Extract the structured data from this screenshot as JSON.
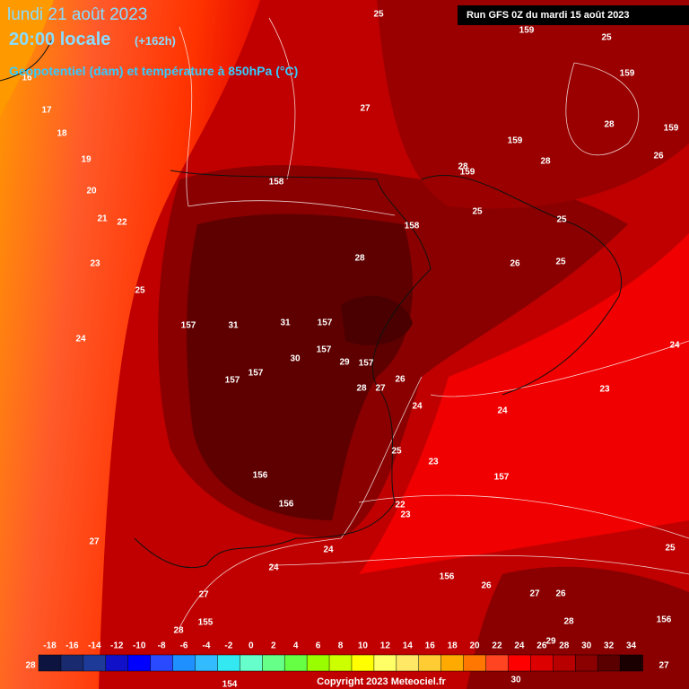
{
  "header": {
    "date": "lundi 21 août 2023",
    "time": "20:00 locale",
    "lead": "(+162h)",
    "field": "Geopotentiel (dam) et température à 850hPa (°C)",
    "run": "Run GFS 0Z du mardi 15 août 2023"
  },
  "footer": {
    "copyright": "Copyright 2023 Meteociel.fr"
  },
  "legend": {
    "ticks": [
      -18,
      -16,
      -14,
      -12,
      -10,
      -8,
      -6,
      -4,
      -2,
      0,
      2,
      4,
      6,
      8,
      10,
      12,
      14,
      16,
      18,
      20,
      22,
      24,
      26,
      28,
      30,
      32,
      34
    ],
    "colors": [
      "#0d1440",
      "#1a2a6e",
      "#1e3a99",
      "#1010c8",
      "#0000ff",
      "#2a4aff",
      "#1e90ff",
      "#33bbff",
      "#33e8f0",
      "#66ffcc",
      "#66ff88",
      "#66ff44",
      "#99ff00",
      "#ccff00",
      "#ffff00",
      "#ffff66",
      "#ffe866",
      "#ffcc33",
      "#ffaa00",
      "#ff7700",
      "#ff4422",
      "#ff0000",
      "#dd0000",
      "#b80000",
      "#8b0000",
      "#5a0000",
      "#1a0000"
    ]
  },
  "map_labels": [
    25,
    159,
    25,
    159,
    27,
    28,
    159,
    159,
    26,
    28,
    159,
    28,
    158,
    158,
    25,
    25,
    28,
    26,
    25,
    16,
    17,
    18,
    19,
    20,
    21,
    22,
    23,
    25,
    157,
    31,
    31,
    157,
    157,
    30,
    29,
    157,
    24,
    24,
    157,
    157,
    28,
    27,
    26,
    23,
    24,
    24,
    25,
    23,
    156,
    157,
    156,
    22,
    23,
    27,
    24,
    25,
    24,
    156,
    26,
    27,
    27,
    26,
    28,
    155,
    156,
    28,
    29,
    28,
    27,
    154,
    30
  ]
}
